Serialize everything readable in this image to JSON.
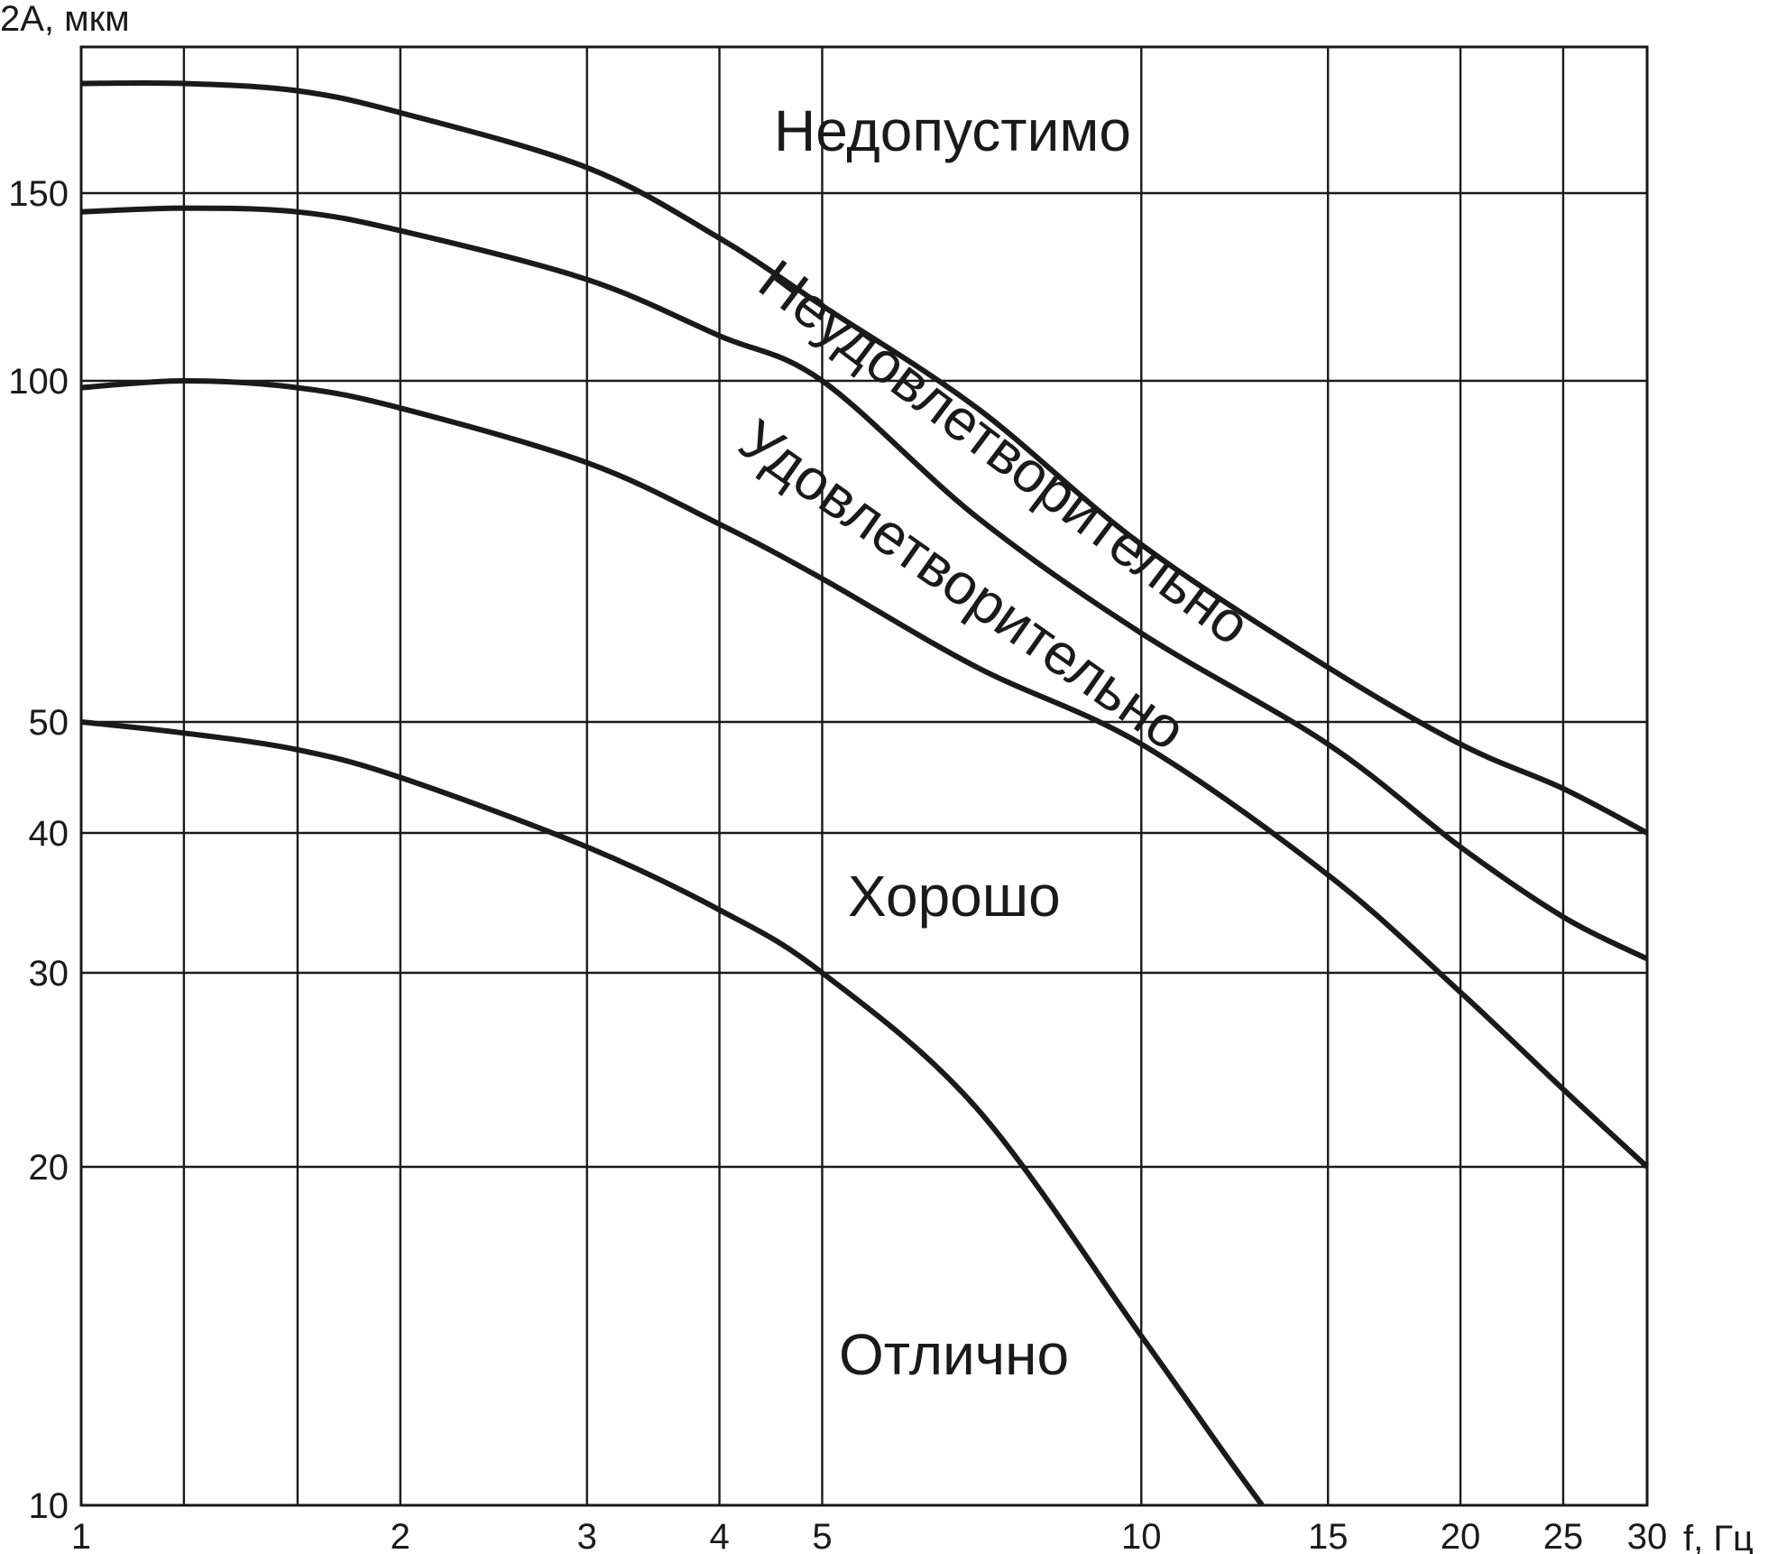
{
  "chart_data": {
    "type": "line",
    "title": "",
    "ylabel": "2А, мкм",
    "xlabel": "f, Гц",
    "x_scale": "log",
    "xlim": [
      1,
      30
    ],
    "ylim": [
      10,
      190
    ],
    "grid": true,
    "x_ticks": [
      {
        "value": 1,
        "label": "1"
      },
      {
        "value": 2,
        "label": "2"
      },
      {
        "value": 3,
        "label": "3"
      },
      {
        "value": 4,
        "label": "4"
      },
      {
        "value": 5,
        "label": "5"
      },
      {
        "value": 10,
        "label": "10"
      },
      {
        "value": 15,
        "label": "15"
      },
      {
        "value": 20,
        "label": "20"
      },
      {
        "value": 25,
        "label": "25"
      },
      {
        "value": 30,
        "label": "30"
      }
    ],
    "x_grid_extra": [
      1.25,
      1.6
    ],
    "y_ticks": [
      {
        "value": 10,
        "label": "10"
      },
      {
        "value": 20,
        "label": "20"
      },
      {
        "value": 30,
        "label": "30"
      },
      {
        "value": 40,
        "label": "40"
      },
      {
        "value": 50,
        "label": "50"
      },
      {
        "value": 100,
        "label": "100"
      },
      {
        "value": 150,
        "label": "150"
      }
    ],
    "series": [
      {
        "x": [
          1,
          1.25,
          1.6,
          2,
          3,
          4,
          5,
          7,
          10,
          15,
          20,
          25,
          30
        ],
        "y": [
          180,
          180,
          178,
          172,
          157,
          138,
          120,
          96,
          76,
          58,
          48,
          44,
          40
        ]
      },
      {
        "x": [
          1,
          1.25,
          1.6,
          2,
          3,
          4,
          5,
          7,
          10,
          15,
          20,
          25,
          30
        ],
        "y": [
          145,
          146,
          145,
          140,
          127,
          112,
          100,
          80,
          63,
          48,
          39,
          34,
          31
        ]
      },
      {
        "x": [
          1,
          1.25,
          1.6,
          2,
          3,
          4,
          5,
          7,
          10,
          15,
          20,
          25,
          30
        ],
        "y": [
          99,
          100,
          99,
          96,
          88,
          79,
          71,
          58,
          48,
          37,
          29,
          24,
          20
        ]
      },
      {
        "x": [
          1,
          1.25,
          1.6,
          2,
          3,
          4,
          5,
          7,
          10,
          12,
          13
        ],
        "y": [
          50,
          49,
          47.5,
          45,
          39,
          34.5,
          30,
          23,
          15,
          11.5,
          10
        ]
      }
    ],
    "zone_labels": [
      {
        "text": "Недопустимо"
      },
      {
        "text": "Неудовлетворительно"
      },
      {
        "text": "Удовлетворительно"
      },
      {
        "text": "Хорошо"
      },
      {
        "text": "Отлично"
      }
    ],
    "colors": {
      "ink": "#1a1a1a",
      "background": "#ffffff"
    }
  }
}
